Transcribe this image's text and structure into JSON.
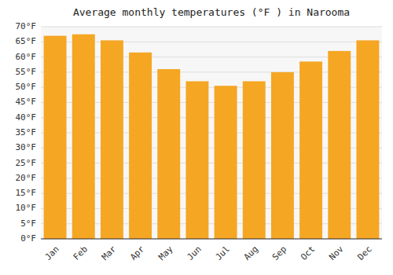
{
  "chart_data": {
    "type": "bar",
    "title": "Average monthly temperatures (°F ) in Narooma",
    "categories": [
      "Jan",
      "Feb",
      "Mar",
      "Apr",
      "May",
      "Jun",
      "Jul",
      "Aug",
      "Sep",
      "Oct",
      "Nov",
      "Dec"
    ],
    "values": [
      67,
      67.5,
      65.5,
      61.5,
      56,
      52,
      50.5,
      52,
      55,
      58.5,
      62,
      65.5
    ],
    "color": "#F5A623",
    "ylim": [
      0,
      70
    ],
    "yticks": [
      {
        "value": 0,
        "label": "0°F"
      },
      {
        "value": 5,
        "label": "5°F"
      },
      {
        "value": 10,
        "label": "10°F"
      },
      {
        "value": 15,
        "label": "15°F"
      },
      {
        "value": 20,
        "label": "20°F"
      },
      {
        "value": 25,
        "label": "25°F"
      },
      {
        "value": 30,
        "label": "30°F"
      },
      {
        "value": 35,
        "label": "35°F"
      },
      {
        "value": 40,
        "label": "40°F"
      },
      {
        "value": 45,
        "label": "45°F"
      },
      {
        "value": 50,
        "label": "50°F"
      },
      {
        "value": 55,
        "label": "55°F"
      },
      {
        "value": 60,
        "label": "60°F"
      },
      {
        "value": 65,
        "label": "65°F"
      },
      {
        "value": 70,
        "label": "70°F"
      }
    ],
    "grid": true
  }
}
